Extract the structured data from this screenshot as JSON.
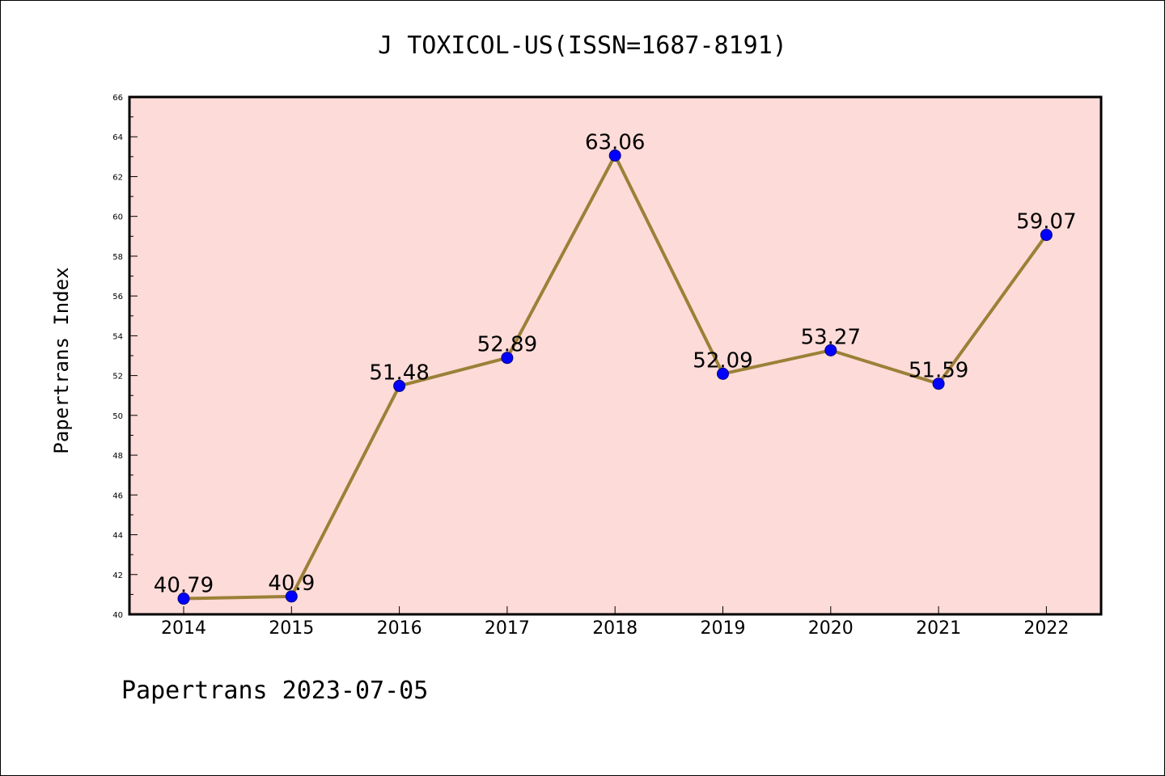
{
  "chart_data": {
    "type": "line",
    "title": "J TOXICOL-US(ISSN=1687-8191)",
    "xlabel": "",
    "ylabel": "Papertrans Index",
    "footer": "Papertrans 2023-07-05",
    "categories": [
      "2014",
      "2015",
      "2016",
      "2017",
      "2018",
      "2019",
      "2020",
      "2021",
      "2022"
    ],
    "series": [
      {
        "values": [
          40.79,
          40.9,
          51.48,
          52.89,
          63.06,
          52.09,
          53.27,
          51.59,
          59.07
        ],
        "labels": [
          "40.79",
          "40.9",
          "51.48",
          "52.89",
          "63.06",
          "52.09",
          "53.27",
          "51.59",
          "59.07"
        ]
      }
    ],
    "ylim": [
      40,
      66
    ],
    "yticks": [
      "40",
      "42",
      "44",
      "46",
      "48",
      "50",
      "52",
      "54",
      "56",
      "58",
      "60",
      "62",
      "64",
      "66"
    ],
    "grid": false,
    "colors": {
      "plot_background": "#fddbd8",
      "line": "#9b8038",
      "marker_fill": "#0000ff",
      "marker_edge": "#000080",
      "axes": "#000000"
    }
  }
}
